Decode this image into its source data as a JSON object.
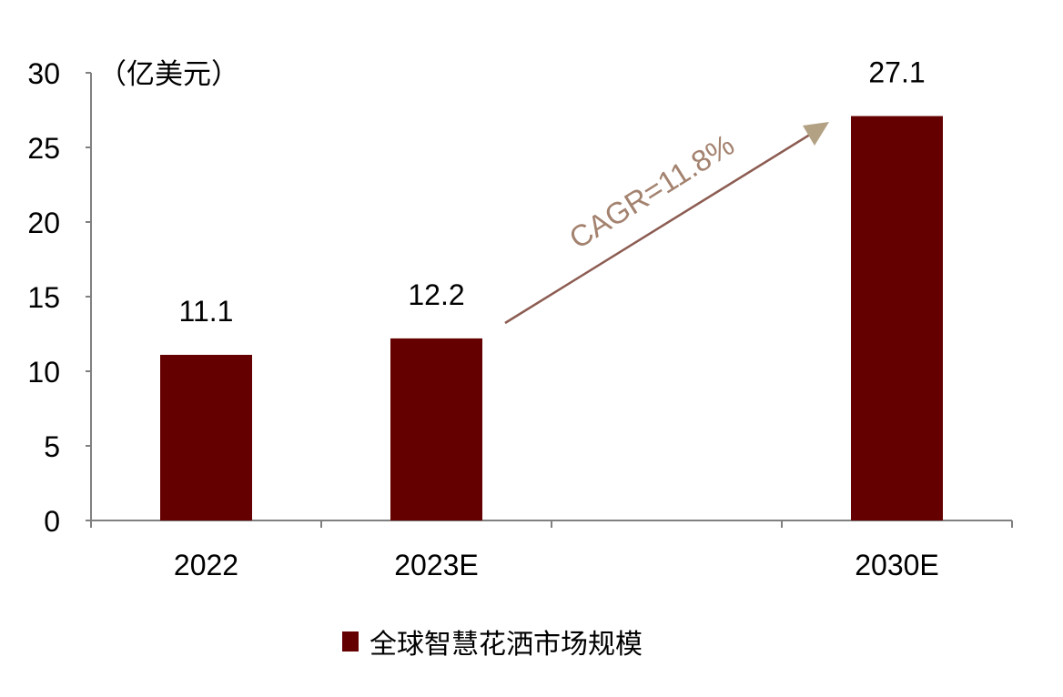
{
  "chart_data": {
    "type": "bar",
    "unit_label": "（亿美元）",
    "categories": [
      "2022",
      "2023E",
      "",
      "2030E"
    ],
    "values": [
      11.1,
      12.2,
      null,
      27.1
    ],
    "data_labels": [
      "11.1",
      "12.2",
      "",
      "27.1"
    ],
    "ylim": [
      0,
      30
    ],
    "yticks": [
      "0",
      "5",
      "10",
      "15",
      "20",
      "25",
      "30"
    ],
    "grid": false,
    "legend": {
      "position": "bottom",
      "entries": [
        "全球智慧花洒市场规模"
      ]
    },
    "annotation": "CAGR=11.8%",
    "colors": {
      "bar": "#650000",
      "arrow_line": "#8c5c52",
      "arrow_head": "#b3a184",
      "annotation_text": "#a3826f",
      "axis": "#808080"
    }
  }
}
